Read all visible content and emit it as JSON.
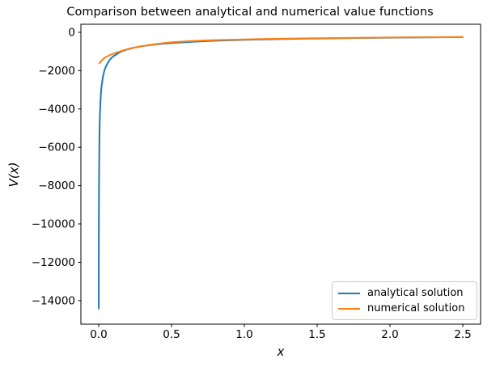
{
  "chart_data": {
    "type": "line",
    "title": "Comparison between analytical and numerical value functions",
    "xlabel": "x",
    "ylabel": "V(x)",
    "xlim": [
      -0.122,
      2.622
    ],
    "ylim": [
      -15230,
      420
    ],
    "grid": false,
    "background": "#ffffff",
    "axis_color": "#000000",
    "xticks": {
      "values": [
        0.0,
        0.5,
        1.0,
        1.5,
        2.0,
        2.5
      ],
      "labels": [
        "0.0",
        "0.5",
        "1.0",
        "1.5",
        "2.0",
        "2.5"
      ]
    },
    "yticks": {
      "values": [
        0,
        -2000,
        -4000,
        -6000,
        -8000,
        -10000,
        -12000,
        -14000
      ],
      "labels": [
        "0",
        "−2000",
        "−4000",
        "−6000",
        "−8000",
        "−10000",
        "−12000",
        "−14000"
      ]
    },
    "legend": {
      "position": "lower right",
      "entries": [
        "analytical solution",
        "numerical solution"
      ]
    },
    "series": [
      {
        "name": "analytical solution",
        "color": "#1f77b4",
        "points": [
          [
            0.00075,
            -14420
          ],
          [
            0.001,
            -12490
          ],
          [
            0.0015,
            -10200
          ],
          [
            0.002,
            -8830
          ],
          [
            0.003,
            -7210
          ],
          [
            0.004,
            -6250
          ],
          [
            0.005,
            -5590
          ],
          [
            0.0075,
            -4560
          ],
          [
            0.01,
            -3950
          ],
          [
            0.015,
            -3230
          ],
          [
            0.02,
            -2790
          ],
          [
            0.03,
            -2280
          ],
          [
            0.04,
            -1975
          ],
          [
            0.05,
            -1770
          ],
          [
            0.075,
            -1440
          ],
          [
            0.1,
            -1250
          ],
          [
            0.15,
            -1020
          ],
          [
            0.2,
            -885
          ],
          [
            0.25,
            -790
          ],
          [
            0.3,
            -720
          ],
          [
            0.4,
            -625
          ],
          [
            0.5,
            -560
          ],
          [
            0.65,
            -490
          ],
          [
            0.8,
            -440
          ],
          [
            1.0,
            -395
          ],
          [
            1.25,
            -355
          ],
          [
            1.5,
            -323
          ],
          [
            1.75,
            -299
          ],
          [
            2.0,
            -280
          ],
          [
            2.25,
            -263
          ],
          [
            2.5,
            -250
          ]
        ]
      },
      {
        "name": "numerical solution",
        "color": "#ff7f0e",
        "points": [
          [
            0.005,
            -1610
          ],
          [
            0.01,
            -1565
          ],
          [
            0.02,
            -1480
          ],
          [
            0.03,
            -1400
          ],
          [
            0.05,
            -1290
          ],
          [
            0.08,
            -1175
          ],
          [
            0.12,
            -1060
          ],
          [
            0.16,
            -965
          ],
          [
            0.21,
            -850
          ],
          [
            0.27,
            -760
          ],
          [
            0.34,
            -670
          ],
          [
            0.42,
            -590
          ],
          [
            0.5,
            -520
          ],
          [
            0.6,
            -470
          ],
          [
            0.72,
            -428
          ],
          [
            0.85,
            -398
          ],
          [
            1.0,
            -368
          ],
          [
            1.2,
            -340
          ],
          [
            1.4,
            -318
          ],
          [
            1.6,
            -300
          ],
          [
            1.8,
            -285
          ],
          [
            2.0,
            -272
          ],
          [
            2.2,
            -261
          ],
          [
            2.35,
            -254
          ],
          [
            2.5,
            -248
          ]
        ]
      }
    ]
  }
}
